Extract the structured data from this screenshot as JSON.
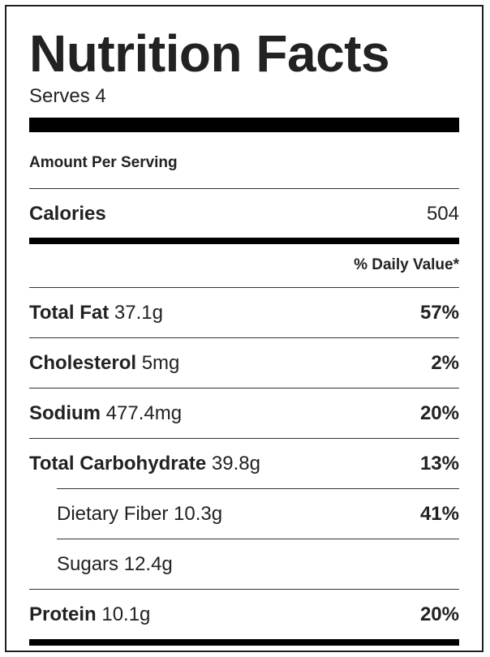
{
  "label": {
    "title": "Nutrition Facts",
    "serves": "Serves 4",
    "amount_per_serving": "Amount Per Serving",
    "calories": {
      "label": "Calories",
      "value": "504"
    },
    "daily_value_header": "% Daily Value*",
    "nutrients": [
      {
        "name": "Total Fat",
        "amount": "37.1g",
        "dv": "57%"
      },
      {
        "name": "Cholesterol",
        "amount": "5mg",
        "dv": "2%"
      },
      {
        "name": "Sodium",
        "amount": "477.4mg",
        "dv": "20%"
      },
      {
        "name": "Total Carbohydrate",
        "amount": "39.8g",
        "dv": "13%"
      },
      {
        "name": "Dietary Fiber",
        "amount": "10.3g",
        "dv": "41%"
      },
      {
        "name": "Sugars",
        "amount": "12.4g",
        "dv": ""
      },
      {
        "name": "Protein",
        "amount": "10.1g",
        "dv": "20%"
      }
    ]
  }
}
